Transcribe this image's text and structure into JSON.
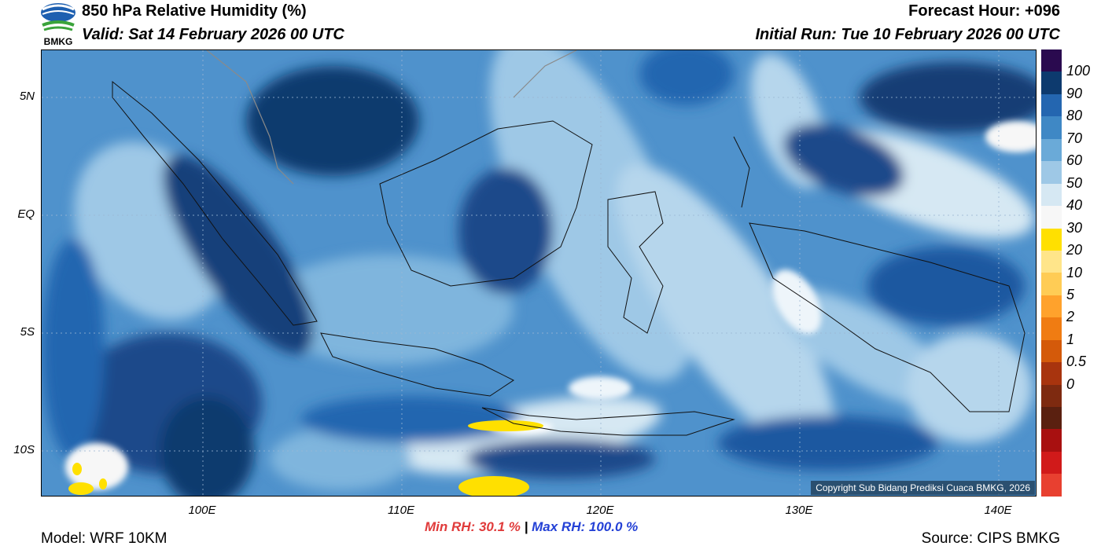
{
  "header": {
    "title": "850 hPa Relative Humidity (%)",
    "valid": "Valid: Sat 14 February 2026 00 UTC",
    "forecast_hour": "Forecast Hour: +096",
    "initial_run": "Initial Run: Tue 10 February 2026 00 UTC"
  },
  "logo": {
    "text": "BMKG"
  },
  "map": {
    "copyright": "Copyright Sub Bidang Prediksi Cuaca BMKG, 2026",
    "lat_labels": [
      "5N",
      "EQ",
      "5S",
      "10S"
    ],
    "lon_labels": [
      "100E",
      "110E",
      "120E",
      "130E",
      "140E"
    ]
  },
  "colorbar": {
    "labels": [
      "100",
      "90",
      "80",
      "70",
      "60",
      "50",
      "40",
      "30",
      "20",
      "10",
      "5",
      "2",
      "1",
      "0.5",
      "0"
    ],
    "colors": [
      "#2a0a4f",
      "#0d3a6e",
      "#2466b0",
      "#3f88c5",
      "#6aaad8",
      "#9ec8e6",
      "#d6e8f3",
      "#f7f7f7",
      "#ffe000",
      "#ffe58a",
      "#ffcc55",
      "#ffa22c",
      "#f07c12",
      "#d45a0a",
      "#a8340e",
      "#7e2a10",
      "#5a2010",
      "#a81010",
      "#d11a1a",
      "#e84030"
    ]
  },
  "stats": {
    "min_label": "Min RH:",
    "min_value": "30.1 %",
    "separator": "|",
    "max_label": "Max RH:",
    "max_value": "100.0 %"
  },
  "footer": {
    "model": "Model: WRF 10KM",
    "source": "Source: CIPS BMKG"
  }
}
